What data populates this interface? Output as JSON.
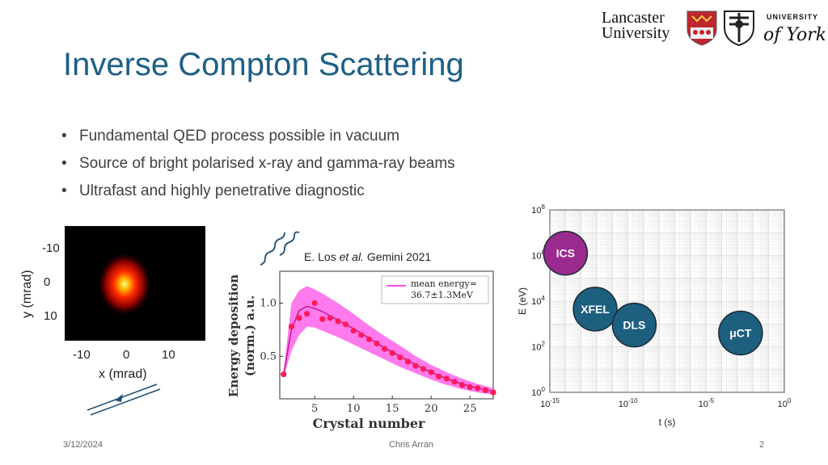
{
  "slide": {
    "title": "Inverse Compton Scattering",
    "bullets": [
      "Fundamental QED process possible in vacuum",
      "Source of bright polarised x-ray and gamma-ray beams",
      "Ultrafast and highly penetrative diagnostic"
    ],
    "citation": {
      "author": "E. Los ",
      "etal": "et al.",
      "rest": " Gemini 2021"
    }
  },
  "logos": {
    "lancaster_line1": "Lancaster",
    "lancaster_line2": "University",
    "york_line1": "UNIVERSITY",
    "york_line2": "of York"
  },
  "footer": {
    "date": "3/12/2024",
    "author": "Chris Arran",
    "page": "2"
  },
  "colors": {
    "title": "#1d5f87",
    "bubble_blue": "#1d5f7f",
    "bubble_purple": "#9b2a8f",
    "energy_band": "#ff4de6",
    "energy_points": "#ff1a5a"
  },
  "beam_image": {
    "xlabel": "x (mrad)",
    "ylabel": "y (mrad)",
    "xticks": [
      "-10",
      "0",
      "10"
    ],
    "yticks": [
      "-10",
      "0",
      "10"
    ]
  },
  "chart_data": [
    {
      "type": "line",
      "xlabel": "Crystal number",
      "ylabel_line1": "Energy deposition",
      "ylabel_line2": "(norm.) a.u.",
      "legend": "mean energy=",
      "legend_line2": "36.7±1.3MeV",
      "legend_position": "top-right",
      "xlim": [
        0.5,
        28
      ],
      "ylim": [
        0.1,
        1.3
      ],
      "xticks": [
        5,
        10,
        15,
        20,
        25
      ],
      "yticks": [
        0.5,
        1.0
      ],
      "ytick_labels": [
        "0.5",
        "1.0"
      ],
      "points": {
        "x": [
          1,
          2,
          3,
          4,
          5,
          6,
          7,
          8,
          9,
          10,
          11,
          12,
          13,
          14,
          15,
          16,
          17,
          18,
          19,
          20,
          21,
          22,
          23,
          24,
          25,
          26,
          27,
          28
        ],
        "y": [
          0.33,
          0.78,
          0.86,
          0.9,
          1.0,
          0.85,
          0.86,
          0.83,
          0.8,
          0.74,
          0.7,
          0.66,
          0.62,
          0.57,
          0.53,
          0.49,
          0.45,
          0.41,
          0.38,
          0.35,
          0.31,
          0.29,
          0.26,
          0.23,
          0.21,
          0.2,
          0.18,
          0.16
        ]
      },
      "model_line": {
        "x": [
          1,
          2,
          3,
          4,
          5,
          6,
          8,
          10,
          12,
          14,
          16,
          18,
          20,
          22,
          24,
          26,
          28
        ],
        "y": [
          0.33,
          0.75,
          0.93,
          0.97,
          0.95,
          0.92,
          0.84,
          0.76,
          0.67,
          0.58,
          0.5,
          0.42,
          0.35,
          0.29,
          0.24,
          0.2,
          0.17
        ]
      },
      "band_upper": [
        0.36,
        1.0,
        1.12,
        1.16,
        1.13,
        1.09,
        1.0,
        0.9,
        0.79,
        0.69,
        0.6,
        0.5,
        0.42,
        0.35,
        0.29,
        0.24,
        0.2
      ],
      "band_lower": [
        0.3,
        0.55,
        0.7,
        0.78,
        0.77,
        0.74,
        0.68,
        0.61,
        0.54,
        0.47,
        0.4,
        0.34,
        0.28,
        0.23,
        0.19,
        0.16,
        0.14
      ]
    },
    {
      "type": "scatter",
      "xlabel": "t (s)",
      "ylabel": "E (eV)",
      "x_scale": "log",
      "y_scale": "log",
      "xlim_exp": [
        -15,
        0
      ],
      "ylim_exp": [
        0,
        8
      ],
      "xticks_exp": [
        -15,
        -10,
        -5,
        0
      ],
      "yticks_exp": [
        0,
        2,
        4,
        6,
        8
      ],
      "grid": true,
      "bubbles": [
        {
          "label": "ICS",
          "t_exp": -14,
          "E_exp": 6.1,
          "color": "#9b2a8f"
        },
        {
          "label": "XFEL",
          "t_exp": -12.1,
          "E_exp": 3.65,
          "color": "#1d5f7f"
        },
        {
          "label": "DLS",
          "t_exp": -9.6,
          "E_exp": 2.95,
          "color": "#1d5f7f"
        },
        {
          "label": "μCT",
          "t_exp": -2.8,
          "E_exp": 2.6,
          "color": "#1d5f7f"
        }
      ]
    }
  ]
}
